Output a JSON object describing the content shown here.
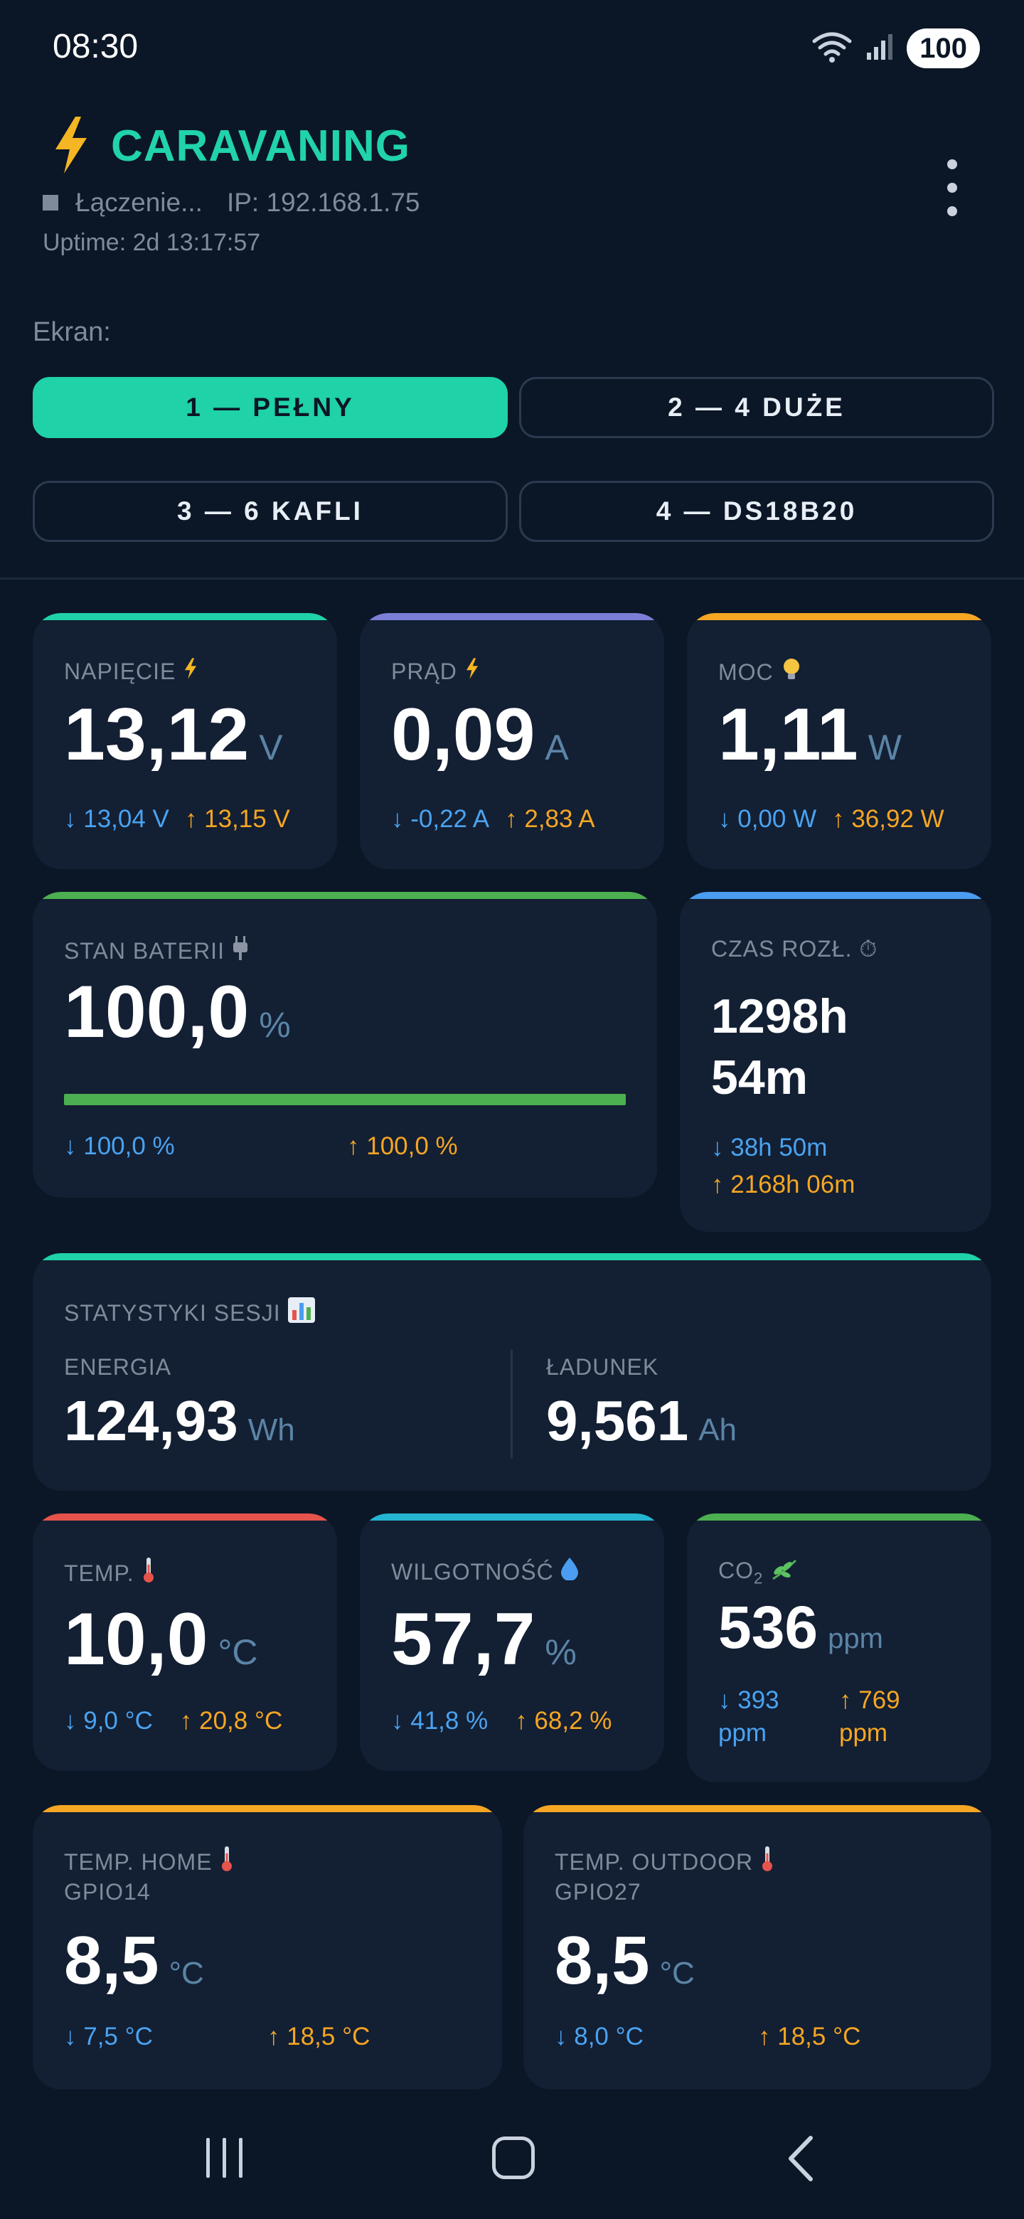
{
  "status_bar": {
    "time": "08:30",
    "battery": "100",
    "wifi_icon": "wifi-icon",
    "signal_icon": "signal-icon"
  },
  "header": {
    "title": "CARAVANING",
    "title_color": "#21d3aa",
    "icon": "lightning-icon",
    "connection_status": "Łączenie...",
    "ip": "IP: 192.168.1.75",
    "uptime": "Uptime: 2d 13:17:57"
  },
  "screen": {
    "label": "Ekran:",
    "buttons": [
      {
        "label": "1 — PEŁNY",
        "active": true
      },
      {
        "label": "2 — 4 DUŻE",
        "active": false
      },
      {
        "label": "3 — 6 KAFLI",
        "active": false
      },
      {
        "label": "4 — DS18B20",
        "active": false
      }
    ]
  },
  "cards": {
    "voltage": {
      "label": "NAPIĘCIE",
      "value": "13,12",
      "unit": "V",
      "min": "↓ 13,04 V",
      "max": "↑ 13,15 V",
      "accent": "#1fd2a8"
    },
    "current": {
      "label": "PRĄD",
      "value": "0,09",
      "unit": "A",
      "min": "↓ -0,22 A",
      "max": "↑ 2,83 A",
      "accent": "#7b7fd6"
    },
    "power": {
      "label": "MOC",
      "value": "1,11",
      "unit": "W",
      "min": "↓ 0,00 W",
      "max": "↑ 36,92 W",
      "accent": "#f5a623"
    },
    "battery": {
      "label": "STAN BATERII",
      "value": "100,0",
      "unit": "%",
      "min": "↓ 100,0 %",
      "max": "↑ 100,0 %",
      "level_percent": 100,
      "accent": "#4caf50"
    },
    "discharge_time": {
      "label": "CZAS ROZŁ. ⏱",
      "value_line1": "1298h",
      "value_line2": "54m",
      "min": "↓ 38h 50m",
      "max": "↑ 2168h 06m",
      "accent": "#4a9df0"
    },
    "session": {
      "label": "STATYSTYKI SESJI",
      "energy_label": "ENERGIA",
      "energy_value": "124,93",
      "energy_unit": "Wh",
      "charge_label": "ŁADUNEK",
      "charge_value": "9,561",
      "charge_unit": "Ah",
      "accent": "#1fd2a8"
    },
    "temp": {
      "label": "TEMP.",
      "value": "10,0",
      "unit": "°C",
      "min": "↓ 9,0 °C",
      "max": "↑ 20,8 °C",
      "accent": "#e5534b"
    },
    "humidity": {
      "label": "WILGOTNOŚĆ",
      "value": "57,7",
      "unit": "%",
      "min": "↓ 41,8 %",
      "max": "↑ 68,2 %",
      "accent": "#26b5d1"
    },
    "co2": {
      "label_main": "CO",
      "label_sub": "2",
      "value": "536",
      "unit": "ppm",
      "min_line1": "↓ 393",
      "min_line2": "ppm",
      "max_line1": "↑ 769",
      "max_line2": "ppm",
      "accent": "#4caf50"
    },
    "temp_home": {
      "label": "TEMP. HOME",
      "gpio": "GPIO14",
      "value": "8,5",
      "unit": "°C",
      "min": "↓ 7,5 °C",
      "max": "↑ 18,5 °C",
      "accent": "#f5a623"
    },
    "temp_outdoor": {
      "label": "TEMP. OUTDOOR",
      "gpio": "GPIO27",
      "value": "8,5",
      "unit": "°C",
      "min": "↓ 8,0 °C",
      "max": "↑ 18,5 °C",
      "accent": "#f5a623"
    }
  },
  "nav": {
    "recent_icon": "recent-apps-icon",
    "home_icon": "home-icon",
    "back_icon": "back-icon"
  }
}
